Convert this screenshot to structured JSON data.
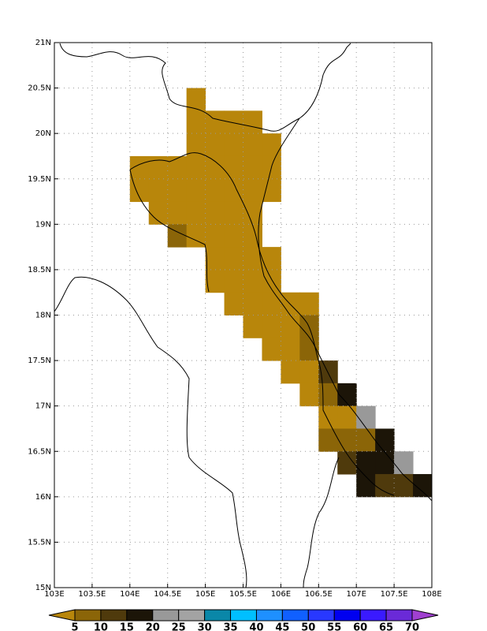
{
  "chart_data": {
    "type": "heatmap",
    "xlim": [
      103,
      108
    ],
    "ylim": [
      15,
      21
    ],
    "cell_size": 0.25,
    "xticks": [
      {
        "value": 103,
        "label": "103E"
      },
      {
        "value": 103.5,
        "label": "103.5E"
      },
      {
        "value": 104,
        "label": "104E"
      },
      {
        "value": 104.5,
        "label": "104.5E"
      },
      {
        "value": 105,
        "label": "105E"
      },
      {
        "value": 105.5,
        "label": "105.5E"
      },
      {
        "value": 106,
        "label": "106E"
      },
      {
        "value": 106.5,
        "label": "106.5E"
      },
      {
        "value": 107,
        "label": "107E"
      },
      {
        "value": 107.5,
        "label": "107.5E"
      },
      {
        "value": 108,
        "label": "108E"
      }
    ],
    "yticks": [
      {
        "value": 15,
        "label": "15N"
      },
      {
        "value": 15.5,
        "label": "15.5N"
      },
      {
        "value": 16,
        "label": "16N"
      },
      {
        "value": 16.5,
        "label": "16.5N"
      },
      {
        "value": 17,
        "label": "17N"
      },
      {
        "value": 17.5,
        "label": "17.5N"
      },
      {
        "value": 18,
        "label": "18N"
      },
      {
        "value": 18.5,
        "label": "18.5N"
      },
      {
        "value": 19,
        "label": "19N"
      },
      {
        "value": 19.5,
        "label": "19.5N"
      },
      {
        "value": 20,
        "label": "20N"
      },
      {
        "value": 20.5,
        "label": "20.5N"
      },
      {
        "value": 21,
        "label": "21N"
      }
    ],
    "grid": true,
    "levels": [
      5,
      10,
      15,
      20,
      25,
      30,
      35,
      40,
      45,
      50,
      55,
      60,
      65,
      70
    ],
    "colors": [
      "#b8860b",
      "#8b6508",
      "#4f3a0c",
      "#1c1508",
      "#999999",
      "#a3a3a3",
      "#0a87a8",
      "#00bfff",
      "#1e90ff",
      "#1060ff",
      "#2838ff",
      "#0000f0",
      "#3a1aff",
      "#6a2ad8",
      "#a040d0"
    ],
    "cells": [
      {
        "lon": 104.75,
        "lat": 20.25,
        "value": 3
      },
      {
        "lon": 104.75,
        "lat": 20,
        "value": 3
      },
      {
        "lon": 105,
        "lat": 20,
        "value": 3
      },
      {
        "lon": 105.25,
        "lat": 20,
        "value": 3
      },
      {
        "lon": 105.5,
        "lat": 20,
        "value": 3
      },
      {
        "lon": 104.75,
        "lat": 19.75,
        "value": 3
      },
      {
        "lon": 105,
        "lat": 19.75,
        "value": 3
      },
      {
        "lon": 105.25,
        "lat": 19.75,
        "value": 3
      },
      {
        "lon": 105.5,
        "lat": 19.75,
        "value": 3
      },
      {
        "lon": 105.75,
        "lat": 19.75,
        "value": 3
      },
      {
        "lon": 104,
        "lat": 19.5,
        "value": 3
      },
      {
        "lon": 104.25,
        "lat": 19.5,
        "value": 3
      },
      {
        "lon": 104.5,
        "lat": 19.5,
        "value": 3
      },
      {
        "lon": 104.75,
        "lat": 19.5,
        "value": 3
      },
      {
        "lon": 105,
        "lat": 19.5,
        "value": 3
      },
      {
        "lon": 105.25,
        "lat": 19.5,
        "value": 3
      },
      {
        "lon": 105.5,
        "lat": 19.5,
        "value": 3
      },
      {
        "lon": 105.75,
        "lat": 19.5,
        "value": 3
      },
      {
        "lon": 104,
        "lat": 19.25,
        "value": 3
      },
      {
        "lon": 104.25,
        "lat": 19.25,
        "value": 3
      },
      {
        "lon": 104.5,
        "lat": 19.25,
        "value": 3
      },
      {
        "lon": 104.75,
        "lat": 19.25,
        "value": 3
      },
      {
        "lon": 105,
        "lat": 19.25,
        "value": 3
      },
      {
        "lon": 105.25,
        "lat": 19.25,
        "value": 3
      },
      {
        "lon": 105.5,
        "lat": 19.25,
        "value": 3
      },
      {
        "lon": 105.75,
        "lat": 19.25,
        "value": 3
      },
      {
        "lon": 104.25,
        "lat": 19,
        "value": 3
      },
      {
        "lon": 104.5,
        "lat": 19,
        "value": 3
      },
      {
        "lon": 104.75,
        "lat": 19,
        "value": 3
      },
      {
        "lon": 105,
        "lat": 19,
        "value": 3
      },
      {
        "lon": 105.25,
        "lat": 19,
        "value": 3
      },
      {
        "lon": 105.5,
        "lat": 19,
        "value": 3
      },
      {
        "lon": 104.5,
        "lat": 18.75,
        "value": 7
      },
      {
        "lon": 104.75,
        "lat": 18.75,
        "value": 3
      },
      {
        "lon": 105,
        "lat": 18.75,
        "value": 3
      },
      {
        "lon": 105.25,
        "lat": 18.75,
        "value": 3
      },
      {
        "lon": 105.5,
        "lat": 18.75,
        "value": 3
      },
      {
        "lon": 105,
        "lat": 18.5,
        "value": 3
      },
      {
        "lon": 105.25,
        "lat": 18.5,
        "value": 3
      },
      {
        "lon": 105.5,
        "lat": 18.5,
        "value": 3
      },
      {
        "lon": 105.75,
        "lat": 18.5,
        "value": 3
      },
      {
        "lon": 105,
        "lat": 18.25,
        "value": 3
      },
      {
        "lon": 105.25,
        "lat": 18.25,
        "value": 3
      },
      {
        "lon": 105.5,
        "lat": 18.25,
        "value": 3
      },
      {
        "lon": 105.75,
        "lat": 18.25,
        "value": 3
      },
      {
        "lon": 105.25,
        "lat": 18,
        "value": 3
      },
      {
        "lon": 105.5,
        "lat": 18,
        "value": 3
      },
      {
        "lon": 105.75,
        "lat": 18,
        "value": 3
      },
      {
        "lon": 106,
        "lat": 18,
        "value": 3
      },
      {
        "lon": 106.25,
        "lat": 18,
        "value": 3
      },
      {
        "lon": 105.5,
        "lat": 17.75,
        "value": 3
      },
      {
        "lon": 105.75,
        "lat": 17.75,
        "value": 3
      },
      {
        "lon": 106,
        "lat": 17.75,
        "value": 3
      },
      {
        "lon": 106.25,
        "lat": 17.75,
        "value": 7
      },
      {
        "lon": 105.75,
        "lat": 17.5,
        "value": 3
      },
      {
        "lon": 106,
        "lat": 17.5,
        "value": 3
      },
      {
        "lon": 106.25,
        "lat": 17.5,
        "value": 7
      },
      {
        "lon": 106,
        "lat": 17.25,
        "value": 3
      },
      {
        "lon": 106.25,
        "lat": 17.25,
        "value": 3
      },
      {
        "lon": 106.5,
        "lat": 17.25,
        "value": 12
      },
      {
        "lon": 106.25,
        "lat": 17,
        "value": 3
      },
      {
        "lon": 106.5,
        "lat": 17,
        "value": 7
      },
      {
        "lon": 106.75,
        "lat": 17,
        "value": 17
      },
      {
        "lon": 106.5,
        "lat": 16.75,
        "value": 3
      },
      {
        "lon": 106.75,
        "lat": 16.75,
        "value": 3
      },
      {
        "lon": 107,
        "lat": 16.75,
        "value": 22
      },
      {
        "lon": 106.5,
        "lat": 16.5,
        "value": 7
      },
      {
        "lon": 106.75,
        "lat": 16.5,
        "value": 7
      },
      {
        "lon": 107,
        "lat": 16.5,
        "value": 7
      },
      {
        "lon": 107.25,
        "lat": 16.5,
        "value": 17
      },
      {
        "lon": 106.75,
        "lat": 16.25,
        "value": 12
      },
      {
        "lon": 107,
        "lat": 16.25,
        "value": 17
      },
      {
        "lon": 107.25,
        "lat": 16.25,
        "value": 17
      },
      {
        "lon": 107.5,
        "lat": 16.25,
        "value": 22
      },
      {
        "lon": 107,
        "lat": 16,
        "value": 17
      },
      {
        "lon": 107.25,
        "lat": 16,
        "value": 12
      },
      {
        "lon": 107.5,
        "lat": 16,
        "value": 12
      },
      {
        "lon": 107.75,
        "lat": 16,
        "value": 17
      }
    ]
  }
}
